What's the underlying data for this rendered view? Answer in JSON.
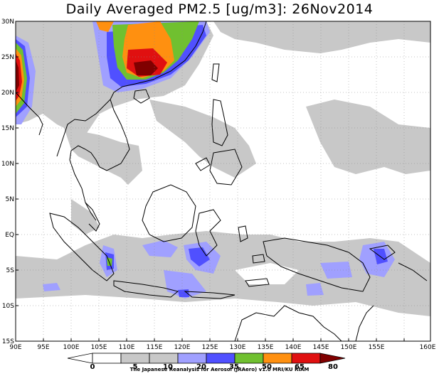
{
  "title": "Daily Averaged PM2.5 [ug/m3]: 26Nov2014",
  "lat_ticks": [
    "30N",
    "25N",
    "20N",
    "15N",
    "10N",
    "5N",
    "EQ",
    "5S",
    "10S",
    "15S"
  ],
  "lon_ticks": [
    "90E",
    "95E",
    "100E",
    "105E",
    "110E",
    "115E",
    "120E",
    "125E",
    "130E",
    "135E",
    "140E",
    "145E",
    "150E",
    "155E",
    "160E"
  ],
  "colorbar": {
    "labels": [
      "0",
      "5",
      "10",
      "20",
      "35",
      "50",
      "65",
      "80"
    ],
    "colors": [
      "#ffffff",
      "#ffffff",
      "#c8c8c8",
      "#a0a0ff",
      "#5050ff",
      "#70c030",
      "#ff9010",
      "#e01010",
      "#800000"
    ]
  },
  "credit": "The Japanese Reanalysis for Aerosol (JRAero) v1.0  MRI/KU RIAM"
}
